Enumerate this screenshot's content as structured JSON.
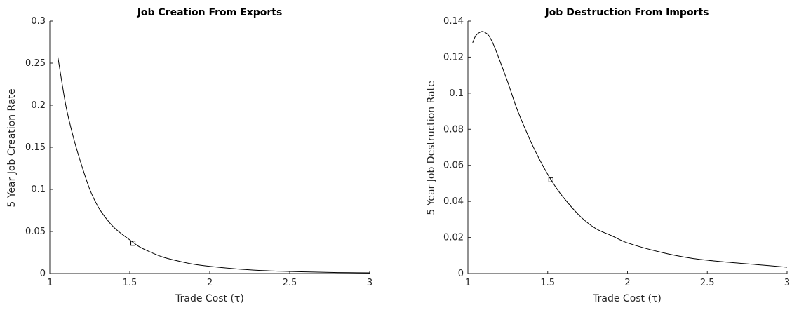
{
  "chart_data": [
    {
      "type": "line",
      "title": "Job Creation From Exports",
      "xlabel": "Trade Cost (τ)",
      "ylabel": "5 Year Job Creation Rate",
      "xlim": [
        1,
        3
      ],
      "ylim": [
        0,
        0.3
      ],
      "xticks": [
        1,
        1.5,
        2,
        2.5,
        3
      ],
      "xtick_labels": [
        "1",
        "1.5",
        "2",
        "2.5",
        "3"
      ],
      "yticks": [
        0,
        0.05,
        0.1,
        0.15,
        0.2,
        0.25,
        0.3
      ],
      "ytick_labels": [
        "0",
        "0.05",
        "0.1",
        "0.15",
        "0.2",
        "0.25",
        "0.3"
      ],
      "grid": false,
      "series": [
        {
          "x": [
            1.05,
            1.1,
            1.15,
            1.2,
            1.25,
            1.3,
            1.35,
            1.4,
            1.45,
            1.5,
            1.55,
            1.6,
            1.7,
            1.8,
            1.9,
            2.0,
            2.2,
            2.4,
            2.6,
            2.8,
            3.0
          ],
          "y": [
            0.258,
            0.2,
            0.16,
            0.128,
            0.1,
            0.08,
            0.066,
            0.055,
            0.047,
            0.04,
            0.033,
            0.028,
            0.02,
            0.015,
            0.011,
            0.0085,
            0.005,
            0.003,
            0.002,
            0.0012,
            0.0008
          ]
        }
      ],
      "highlight_point": {
        "x": 1.52,
        "y": 0.036
      }
    },
    {
      "type": "line",
      "title": "Job Destruction From Imports",
      "xlabel": "Trade Cost (τ)",
      "ylabel": "5 Year Job Destruction Rate",
      "xlim": [
        1,
        3
      ],
      "ylim": [
        0,
        0.14
      ],
      "xticks": [
        1,
        1.5,
        2,
        2.5,
        3
      ],
      "xtick_labels": [
        "1",
        "1.5",
        "2",
        "2.5",
        "3"
      ],
      "yticks": [
        0,
        0.02,
        0.04,
        0.06,
        0.08,
        0.1,
        0.12,
        0.14
      ],
      "ytick_labels": [
        "0",
        "0.02",
        "0.04",
        "0.06",
        "0.08",
        "0.1",
        "0.12",
        "0.14"
      ],
      "grid": false,
      "series": [
        {
          "x": [
            1.03,
            1.05,
            1.08,
            1.1,
            1.13,
            1.16,
            1.2,
            1.25,
            1.3,
            1.35,
            1.4,
            1.45,
            1.5,
            1.55,
            1.6,
            1.7,
            1.8,
            1.9,
            2.0,
            2.2,
            2.4,
            2.6,
            2.8,
            3.0
          ],
          "y": [
            0.128,
            0.132,
            0.134,
            0.134,
            0.132,
            0.127,
            0.118,
            0.106,
            0.093,
            0.082,
            0.072,
            0.063,
            0.055,
            0.048,
            0.042,
            0.032,
            0.025,
            0.021,
            0.017,
            0.012,
            0.0085,
            0.0065,
            0.005,
            0.0035
          ]
        }
      ],
      "highlight_point": {
        "x": 1.52,
        "y": 0.052
      }
    }
  ]
}
